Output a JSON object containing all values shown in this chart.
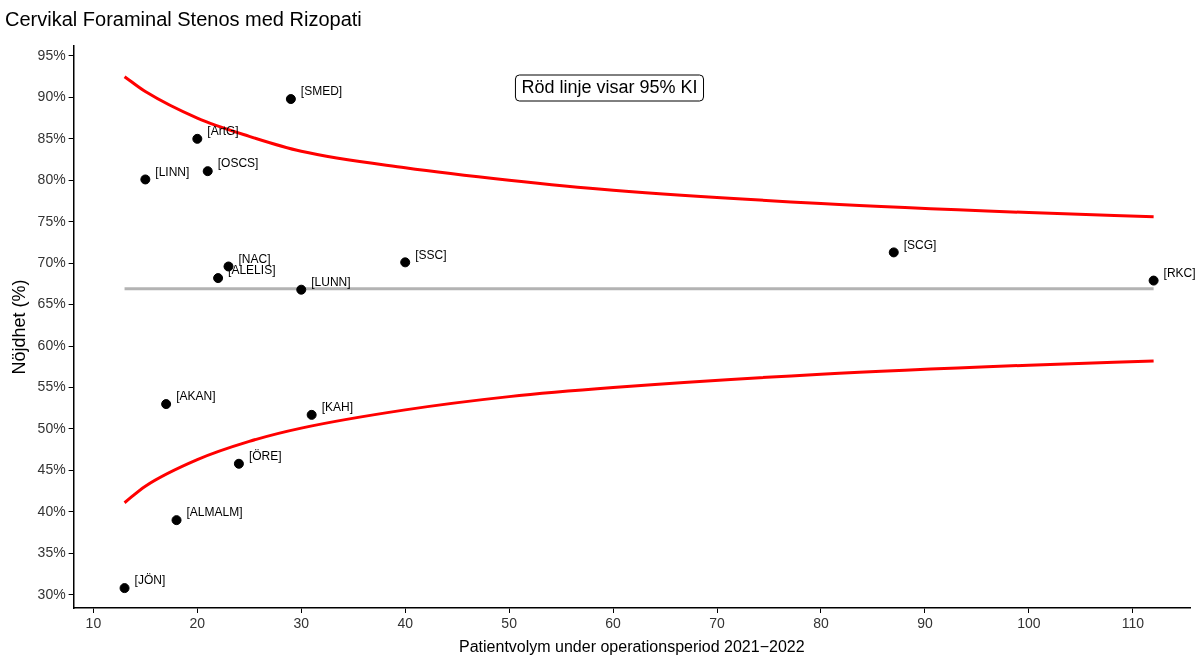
{
  "chart_data": {
    "type": "scatter",
    "title": "Cervikal Foraminal Stenos med Rizopati",
    "xlabel": "Patientvolym under operationsperiod 2021−2022",
    "ylabel": "Nöjdhet (%)",
    "xlim": [
      8.1,
      115.5
    ],
    "ylim": [
      28.4,
      96.2
    ],
    "xticks": [
      10,
      20,
      30,
      40,
      50,
      60,
      70,
      80,
      90,
      100,
      110
    ],
    "yticks": [
      {
        "value": 30,
        "label": "30%"
      },
      {
        "value": 35,
        "label": "35%"
      },
      {
        "value": 40,
        "label": "40%"
      },
      {
        "value": 45,
        "label": "45%"
      },
      {
        "value": 50,
        "label": "50%"
      },
      {
        "value": 55,
        "label": "55%"
      },
      {
        "value": 60,
        "label": "60%"
      },
      {
        "value": 65,
        "label": "65%"
      },
      {
        "value": 70,
        "label": "70%"
      },
      {
        "value": 75,
        "label": "75%"
      },
      {
        "value": 80,
        "label": "80%"
      },
      {
        "value": 85,
        "label": "85%"
      },
      {
        "value": 90,
        "label": "90%"
      },
      {
        "value": 95,
        "label": "95%"
      }
    ],
    "grid": false,
    "legend": false,
    "series": [
      {
        "type": "line",
        "color": "#b3b3b3",
        "x": [
          13,
          112
        ],
        "values": [
          66.9,
          66.9
        ]
      },
      {
        "type": "line",
        "color": "#ff0000",
        "x": [
          13,
          15,
          20,
          25,
          30,
          40,
          50,
          60,
          80,
          100,
          112
        ],
        "values": [
          92.5,
          90.7,
          87.5,
          85.3,
          83.5,
          81.5,
          80.0,
          78.8,
          77.2,
          76.1,
          75.6
        ]
      },
      {
        "type": "line",
        "color": "#ff0000",
        "x": [
          13,
          15,
          20,
          25,
          30,
          40,
          50,
          60,
          80,
          100,
          112
        ],
        "values": [
          41.1,
          43.1,
          46.3,
          48.5,
          50.1,
          52.3,
          53.9,
          55.0,
          56.6,
          57.7,
          58.2
        ]
      },
      {
        "marker": "circle",
        "color": "#000000",
        "x": [
          29,
          20,
          21,
          15,
          23,
          22,
          30,
          40,
          87,
          112,
          17,
          31,
          24,
          18,
          13
        ],
        "values": [
          89.8,
          85,
          81.1,
          80.1,
          69.6,
          68.2,
          66.8,
          70.1,
          71.3,
          67.9,
          53,
          51.7,
          45.8,
          39,
          30.8
        ]
      }
    ],
    "annotations": [
      {
        "text": "[SMED]",
        "x": 29,
        "y": 89.8
      },
      {
        "text": "[ArtG]",
        "x": 20,
        "y": 85
      },
      {
        "text": "[OSCS]",
        "x": 21,
        "y": 81.1
      },
      {
        "text": "[LINN]",
        "x": 15,
        "y": 80.1
      },
      {
        "text": "[NAC]",
        "x": 23,
        "y": 69.6
      },
      {
        "text": "[ALELIS]",
        "x": 22,
        "y": 68.2
      },
      {
        "text": "[LUNN]",
        "x": 30,
        "y": 66.8
      },
      {
        "text": "[SSC]",
        "x": 40,
        "y": 70.1
      },
      {
        "text": "[SCG]",
        "x": 87,
        "y": 71.3
      },
      {
        "text": "[RKC]",
        "x": 112,
        "y": 67.9
      },
      {
        "text": "[AKAN]",
        "x": 17,
        "y": 53
      },
      {
        "text": "[KAH]",
        "x": 31,
        "y": 51.7
      },
      {
        "text": "[ÖRE]",
        "x": 24,
        "y": 45.8
      },
      {
        "text": "[ALMALM]",
        "x": 18,
        "y": 39
      },
      {
        "text": "[JÖN]",
        "x": 13,
        "y": 30.8
      },
      "Röd linje visar 95% KI"
    ]
  }
}
